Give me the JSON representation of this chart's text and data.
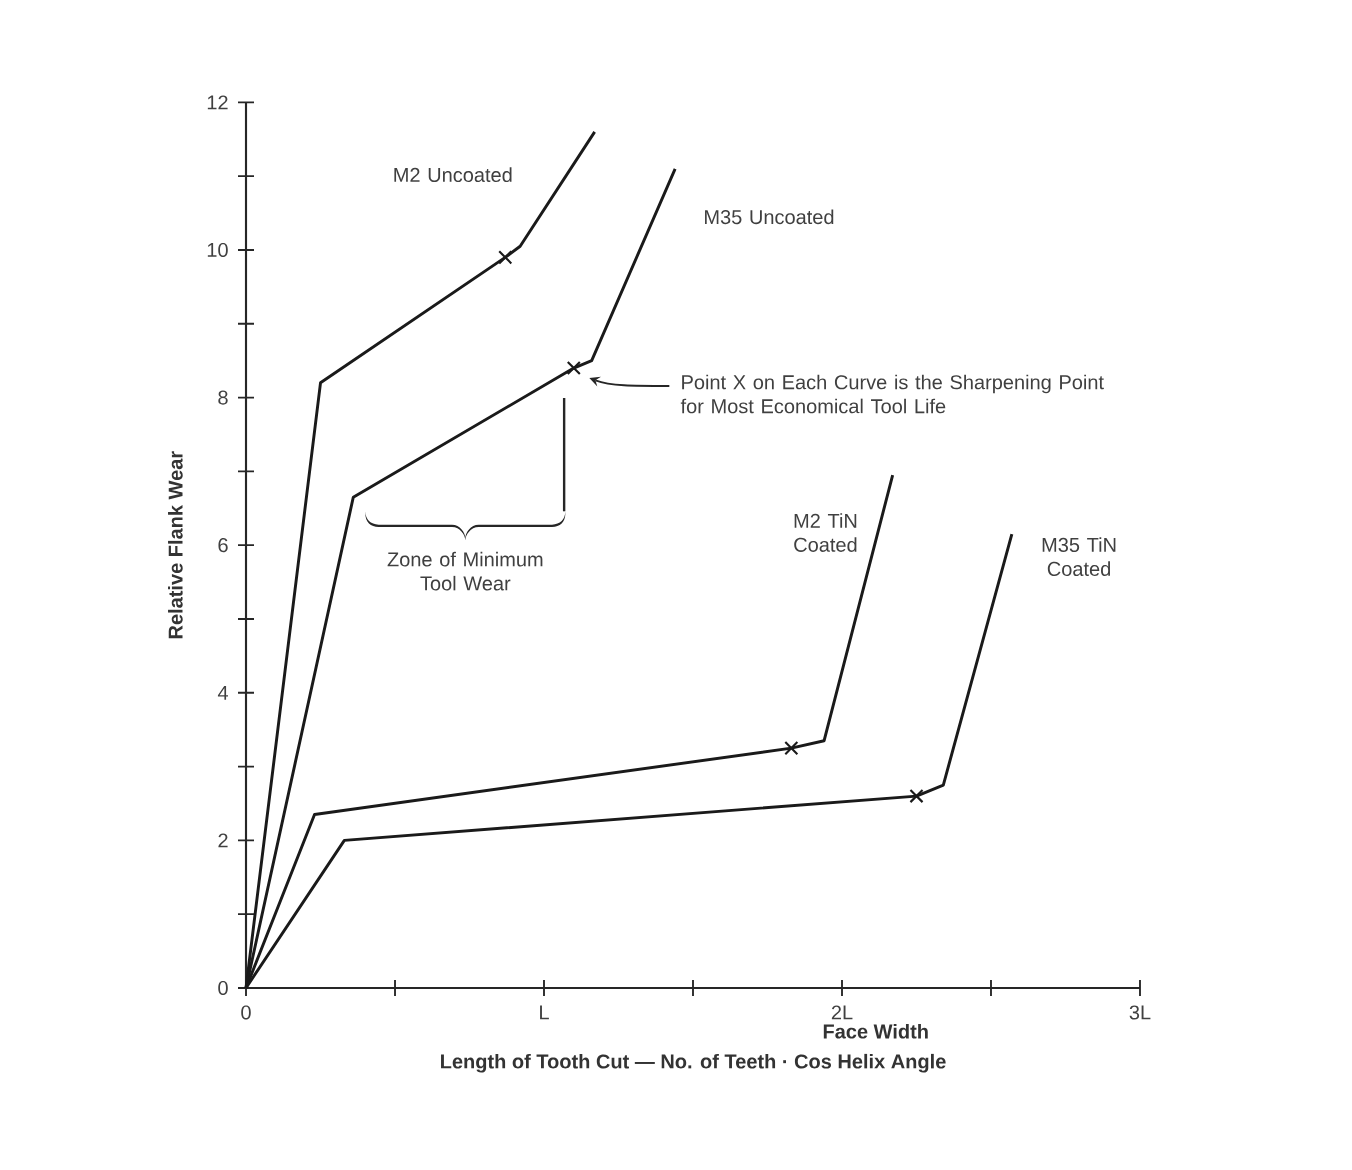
{
  "chart_data": {
    "type": "line",
    "xlabel": "Length of Tooth Cut — No. of Teeth · Cos Helix Angle",
    "ylabel": "Relative Flank Wear",
    "xlim": [
      0,
      3
    ],
    "ylim": [
      0,
      12
    ],
    "xticks": [
      0,
      {
        "value": 0.5,
        "label": null
      },
      {
        "value": 1,
        "label": "L"
      },
      {
        "value": 1.5,
        "label": null
      },
      {
        "value": 2,
        "label": "2L"
      },
      {
        "value": 2.5,
        "label": null
      },
      {
        "value": 3,
        "label": "3L"
      }
    ],
    "yticks": [
      0,
      {
        "value": 1,
        "label": null
      },
      2,
      {
        "value": 3,
        "label": null
      },
      4,
      {
        "value": 5,
        "label": null
      },
      6,
      {
        "value": 7,
        "label": null
      },
      8,
      {
        "value": 9,
        "label": null
      },
      10,
      {
        "value": 11,
        "label": null
      },
      12
    ],
    "series": [
      {
        "name": "M2 Uncoated",
        "color": "#1a1a1a",
        "x": [
          0,
          0.25,
          0.87,
          0.92,
          1.17
        ],
        "values": [
          0,
          8.2,
          9.9,
          10.05,
          11.6
        ]
      },
      {
        "name": "M35 Uncoated",
        "color": "#1a1a1a",
        "x": [
          0,
          0.36,
          1.1,
          1.16,
          1.44
        ],
        "values": [
          0,
          6.65,
          8.4,
          8.5,
          11.1
        ]
      },
      {
        "name": "M2 TiN Coated",
        "color": "#1a1a1a",
        "x": [
          0,
          0.23,
          1.83,
          1.94,
          2.17
        ],
        "values": [
          0,
          2.35,
          3.25,
          3.35,
          6.95
        ]
      },
      {
        "name": "M35 TiN Coated",
        "color": "#1a1a1a",
        "x": [
          0,
          0.33,
          2.25,
          2.34,
          2.57
        ],
        "values": [
          0,
          2.0,
          2.6,
          2.75,
          6.15
        ]
      },
      {
        "type": "scatter",
        "marker": "cross",
        "color": "#1a1a1a",
        "x": [
          0.87,
          1.1,
          1.83,
          2.25
        ],
        "values": [
          9.9,
          8.4,
          3.25,
          2.6
        ]
      }
    ],
    "annotations": [
      "Point X on Each Curve is the Sharpening Point for Most Economical Tool Life",
      "Zone of Minimum Tool Wear",
      "Face Width"
    ]
  }
}
